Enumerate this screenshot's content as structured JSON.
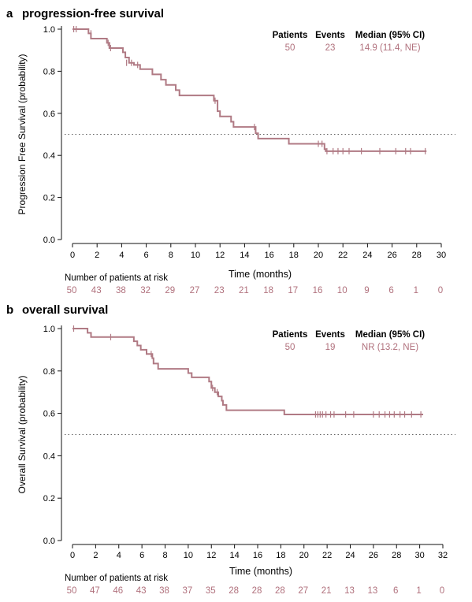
{
  "colors": {
    "curve": "#b07a84",
    "accent_text": "#b0707c",
    "axis": "#111111",
    "reference_line": "#666666"
  },
  "chart_data": [
    {
      "panel_letter": "a",
      "title": "progression-free survival",
      "type": "line",
      "ylabel": "Progression Free Survival (probability)",
      "xlabel": "Time (months)",
      "xlim": [
        0,
        30
      ],
      "ylim": [
        0.0,
        1.0
      ],
      "xticks": [
        "0",
        "2",
        "4",
        "6",
        "8",
        "10",
        "12",
        "14",
        "16",
        "18",
        "20",
        "22",
        "24",
        "26",
        "28",
        "30"
      ],
      "yticks": [
        "0.0",
        "0.2",
        "0.4",
        "0.6",
        "0.8",
        "1.0"
      ],
      "reference_line_y": 0.5,
      "legend": {
        "headers": [
          "Patients",
          "Events",
          "Median (95% CI)"
        ],
        "values": [
          "50",
          "23",
          "14.9 (11.4, NE)"
        ]
      },
      "at_risk_label": "Number of patients at risk",
      "at_risk_times": [
        0,
        2,
        4,
        6,
        8,
        10,
        12,
        14,
        16,
        18,
        20,
        22,
        24,
        26,
        28,
        30
      ],
      "at_risk": [
        "50",
        "43",
        "38",
        "32",
        "29",
        "27",
        "23",
        "21",
        "18",
        "17",
        "16",
        "10",
        "9",
        "6",
        "1",
        "0"
      ],
      "steps": [
        [
          0,
          1.0
        ],
        [
          1.3,
          0.98
        ],
        [
          1.5,
          0.955
        ],
        [
          2.8,
          0.935
        ],
        [
          3.0,
          0.91
        ],
        [
          4.1,
          0.89
        ],
        [
          4.3,
          0.865
        ],
        [
          4.6,
          0.84
        ],
        [
          5.0,
          0.83
        ],
        [
          5.5,
          0.81
        ],
        [
          6.5,
          0.785
        ],
        [
          7.2,
          0.76
        ],
        [
          7.6,
          0.735
        ],
        [
          8.4,
          0.71
        ],
        [
          8.7,
          0.685
        ],
        [
          11.5,
          0.66
        ],
        [
          11.8,
          0.61
        ],
        [
          12.0,
          0.585
        ],
        [
          12.9,
          0.56
        ],
        [
          13.1,
          0.535
        ],
        [
          14.9,
          0.505
        ],
        [
          15.1,
          0.48
        ],
        [
          17.6,
          0.455
        ],
        [
          20.5,
          0.43
        ],
        [
          20.6,
          0.42
        ],
        [
          28.8,
          0.42
        ]
      ],
      "censored": [
        [
          0.1,
          1.0
        ],
        [
          0.3,
          1.0
        ],
        [
          1.5,
          0.98
        ],
        [
          2.9,
          0.935
        ],
        [
          3.1,
          0.91
        ],
        [
          4.4,
          0.84
        ],
        [
          4.8,
          0.84
        ],
        [
          5.3,
          0.83
        ],
        [
          11.6,
          0.66
        ],
        [
          14.8,
          0.535
        ],
        [
          20.0,
          0.455
        ],
        [
          20.3,
          0.455
        ],
        [
          20.7,
          0.42
        ],
        [
          21.2,
          0.42
        ],
        [
          21.6,
          0.42
        ],
        [
          22.0,
          0.42
        ],
        [
          22.5,
          0.42
        ],
        [
          23.5,
          0.42
        ],
        [
          25.0,
          0.42
        ],
        [
          26.3,
          0.42
        ],
        [
          27.1,
          0.42
        ],
        [
          27.5,
          0.42
        ],
        [
          28.7,
          0.42
        ]
      ]
    },
    {
      "panel_letter": "b",
      "title": "overall survival",
      "type": "line",
      "ylabel": "Overall Survival (probability)",
      "xlabel": "Time (months)",
      "xlim": [
        0,
        32
      ],
      "ylim": [
        0.0,
        1.0
      ],
      "xticks": [
        "0",
        "2",
        "4",
        "6",
        "8",
        "10",
        "12",
        "14",
        "16",
        "18",
        "20",
        "22",
        "24",
        "26",
        "28",
        "30",
        "32"
      ],
      "yticks": [
        "0.0",
        "0.2",
        "0.4",
        "0.6",
        "0.8",
        "1.0"
      ],
      "reference_line_y": 0.5,
      "legend": {
        "headers": [
          "Patients",
          "Events",
          "Median (95% CI)"
        ],
        "values": [
          "50",
          "19",
          "NR (13.2, NE)"
        ]
      },
      "at_risk_label": "Number of patients at risk",
      "at_risk_times": [
        0,
        2,
        4,
        6,
        8,
        10,
        12,
        14,
        16,
        18,
        20,
        22,
        24,
        26,
        28,
        30,
        32
      ],
      "at_risk": [
        "50",
        "47",
        "46",
        "43",
        "38",
        "37",
        "35",
        "28",
        "28",
        "28",
        "27",
        "21",
        "13",
        "13",
        "6",
        "1",
        "0"
      ],
      "steps": [
        [
          0,
          1.0
        ],
        [
          1.3,
          0.98
        ],
        [
          1.6,
          0.96
        ],
        [
          5.3,
          0.94
        ],
        [
          5.6,
          0.92
        ],
        [
          5.9,
          0.9
        ],
        [
          6.4,
          0.88
        ],
        [
          6.9,
          0.86
        ],
        [
          7.0,
          0.835
        ],
        [
          7.4,
          0.81
        ],
        [
          10.0,
          0.79
        ],
        [
          10.3,
          0.77
        ],
        [
          11.8,
          0.75
        ],
        [
          12.0,
          0.72
        ],
        [
          12.3,
          0.7
        ],
        [
          12.6,
          0.68
        ],
        [
          12.9,
          0.66
        ],
        [
          13.0,
          0.64
        ],
        [
          13.3,
          0.615
        ],
        [
          18.3,
          0.595
        ],
        [
          30.3,
          0.595
        ]
      ],
      "censored": [
        [
          0.1,
          1.0
        ],
        [
          3.3,
          0.96
        ],
        [
          6.8,
          0.88
        ],
        [
          12.1,
          0.72
        ],
        [
          12.5,
          0.7
        ],
        [
          21.0,
          0.595
        ],
        [
          21.2,
          0.595
        ],
        [
          21.4,
          0.595
        ],
        [
          21.6,
          0.595
        ],
        [
          21.9,
          0.595
        ],
        [
          22.3,
          0.595
        ],
        [
          22.6,
          0.595
        ],
        [
          23.6,
          0.595
        ],
        [
          24.3,
          0.595
        ],
        [
          26.0,
          0.595
        ],
        [
          26.5,
          0.595
        ],
        [
          27.0,
          0.595
        ],
        [
          27.4,
          0.595
        ],
        [
          27.8,
          0.595
        ],
        [
          28.3,
          0.595
        ],
        [
          28.7,
          0.595
        ],
        [
          29.3,
          0.595
        ],
        [
          30.1,
          0.595
        ]
      ]
    }
  ]
}
